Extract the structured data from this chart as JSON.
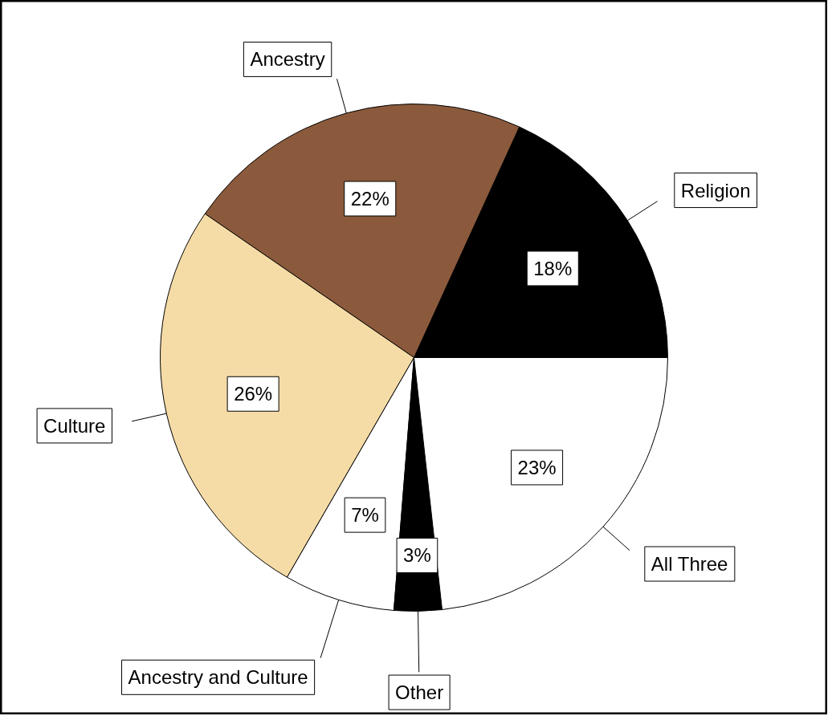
{
  "chart_data": {
    "type": "pie",
    "categories": [
      "Religion",
      "Ancestry",
      "Culture",
      "Ancestry and Culture",
      "Other",
      "All Three"
    ],
    "values": [
      18,
      22,
      26,
      7,
      3,
      23
    ],
    "colors": [
      "#000000",
      "#8b5a3c",
      "#f5dba6",
      "#ffffff",
      "#000000",
      "#ffffff"
    ],
    "value_labels": [
      "18%",
      "22%",
      "26%",
      "7%",
      "3%",
      "23%"
    ]
  }
}
